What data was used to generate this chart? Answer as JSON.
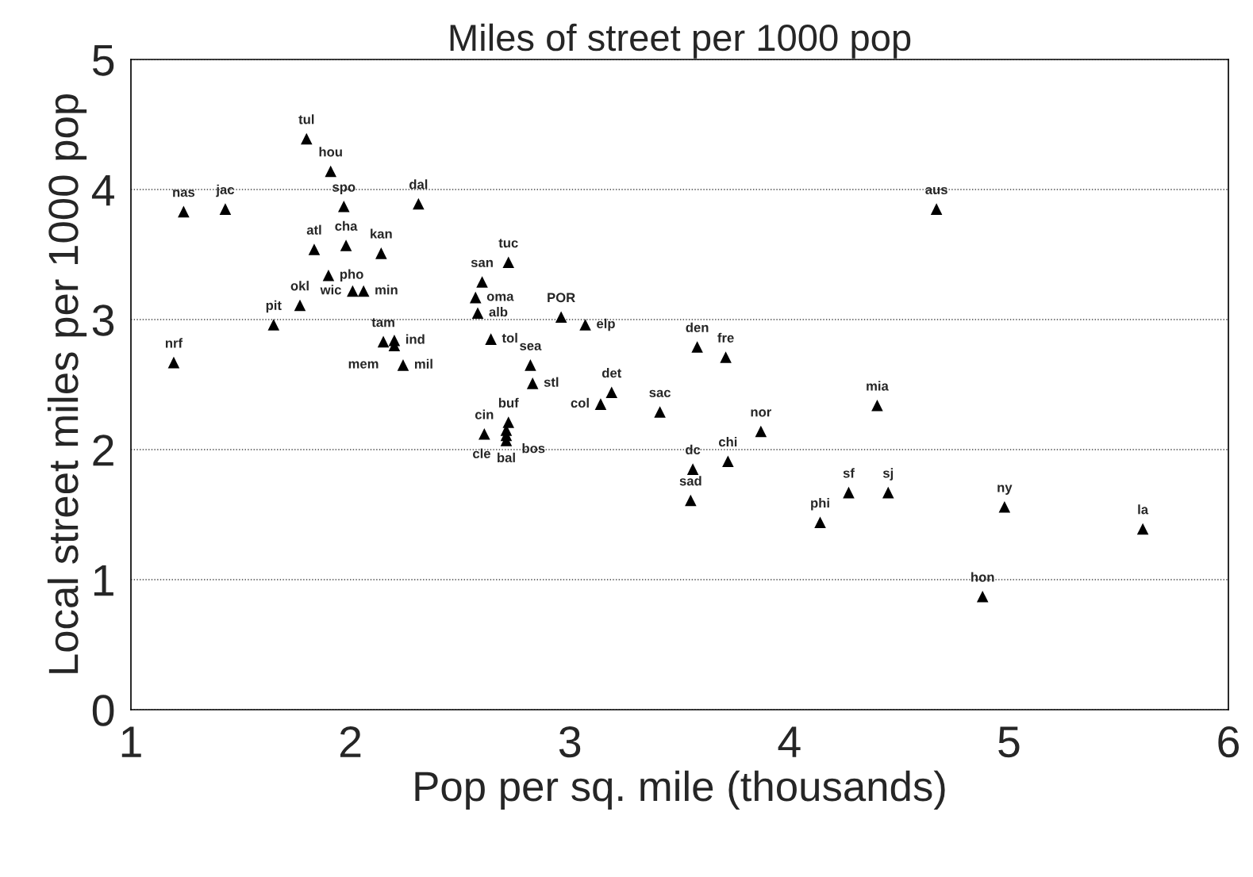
{
  "chart_data": {
    "type": "scatter",
    "title": "Miles of street per 1000 pop",
    "xlabel": "Pop per sq. mile (thousands)",
    "ylabel": "Local street miles per 1000 pop",
    "xlim": [
      1,
      6
    ],
    "xticks": [
      1,
      2,
      3,
      4,
      5,
      6
    ],
    "ylim": [
      0,
      5
    ],
    "yticks": [
      0,
      1,
      2,
      3,
      4,
      5
    ],
    "grid": "y",
    "marker": "triangle",
    "series": [
      {
        "color": "#000000",
        "x": [
          1.195,
          1.24,
          1.43,
          1.65,
          1.77,
          1.8,
          1.835,
          1.9,
          1.91,
          1.98,
          1.97,
          2.01,
          2.06,
          2.14,
          2.15,
          2.2,
          2.2,
          2.24,
          2.31,
          2.6,
          2.57,
          2.58,
          2.72,
          2.64,
          2.96,
          3.07,
          2.82,
          2.83,
          2.61,
          2.72,
          2.71,
          2.71,
          2.71,
          3.14,
          3.19,
          3.41,
          3.58,
          3.71,
          3.56,
          3.55,
          3.72,
          3.87,
          4.14,
          4.27,
          4.45,
          4.4,
          4.67,
          4.88,
          4.98,
          5.61
        ],
        "values": [
          2.67,
          3.83,
          3.85,
          2.96,
          3.11,
          4.39,
          3.54,
          3.34,
          4.14,
          3.57,
          3.87,
          3.22,
          3.22,
          3.51,
          2.83,
          2.84,
          2.8,
          2.65,
          3.89,
          3.29,
          3.17,
          3.05,
          3.44,
          2.85,
          3.02,
          2.96,
          2.65,
          2.51,
          2.12,
          2.21,
          2.15,
          2.11,
          2.07,
          2.35,
          2.44,
          2.29,
          2.79,
          2.71,
          1.85,
          1.61,
          1.91,
          2.14,
          1.44,
          1.67,
          1.67,
          2.34,
          3.85,
          0.87,
          1.56,
          1.39
        ]
      }
    ],
    "annotations": [
      {
        "text": "nrf",
        "x": 1.195,
        "y": 2.67
      },
      {
        "text": "nas",
        "x": 1.24,
        "y": 3.83
      },
      {
        "text": "jac",
        "x": 1.43,
        "y": 3.85
      },
      {
        "text": "pit",
        "x": 1.65,
        "y": 2.96
      },
      {
        "text": "okl",
        "x": 1.77,
        "y": 3.11
      },
      {
        "text": "tul",
        "x": 1.8,
        "y": 4.39
      },
      {
        "text": "atl",
        "x": 1.835,
        "y": 3.54
      },
      {
        "text": "pho",
        "x": 1.9,
        "y": 3.34
      },
      {
        "text": "hou",
        "x": 1.91,
        "y": 4.14
      },
      {
        "text": "cha",
        "x": 1.98,
        "y": 3.57
      },
      {
        "text": "spo",
        "x": 1.97,
        "y": 3.87
      },
      {
        "text": "wic",
        "x": 2.01,
        "y": 3.22
      },
      {
        "text": "min",
        "x": 2.06,
        "y": 3.22
      },
      {
        "text": "kan",
        "x": 2.14,
        "y": 3.51
      },
      {
        "text": "tam",
        "x": 2.15,
        "y": 2.83
      },
      {
        "text": "ind",
        "x": 2.2,
        "y": 2.84
      },
      {
        "text": "mem",
        "x": 2.2,
        "y": 2.8
      },
      {
        "text": "mil",
        "x": 2.24,
        "y": 2.65
      },
      {
        "text": "dal",
        "x": 2.31,
        "y": 3.89
      },
      {
        "text": "san",
        "x": 2.6,
        "y": 3.29
      },
      {
        "text": "oma",
        "x": 2.57,
        "y": 3.17
      },
      {
        "text": "alb",
        "x": 2.58,
        "y": 3.05
      },
      {
        "text": "tuc",
        "x": 2.72,
        "y": 3.44
      },
      {
        "text": "tol",
        "x": 2.64,
        "y": 2.85
      },
      {
        "text": "POR",
        "x": 2.96,
        "y": 3.02
      },
      {
        "text": "elp",
        "x": 3.07,
        "y": 2.96
      },
      {
        "text": "sea",
        "x": 2.82,
        "y": 2.65
      },
      {
        "text": "stl",
        "x": 2.83,
        "y": 2.51
      },
      {
        "text": "cin",
        "x": 2.61,
        "y": 2.12
      },
      {
        "text": "buf",
        "x": 2.72,
        "y": 2.21
      },
      {
        "text": "bos",
        "x": 2.71,
        "y": 2.15
      },
      {
        "text": "cle",
        "x": 2.71,
        "y": 2.11
      },
      {
        "text": "bal",
        "x": 2.71,
        "y": 2.07
      },
      {
        "text": "col",
        "x": 3.14,
        "y": 2.35
      },
      {
        "text": "det",
        "x": 3.19,
        "y": 2.44
      },
      {
        "text": "sac",
        "x": 3.41,
        "y": 2.29
      },
      {
        "text": "den",
        "x": 3.58,
        "y": 2.79
      },
      {
        "text": "fre",
        "x": 3.71,
        "y": 2.71
      },
      {
        "text": "dc",
        "x": 3.56,
        "y": 1.85
      },
      {
        "text": "sad",
        "x": 3.55,
        "y": 1.61
      },
      {
        "text": "chi",
        "x": 3.72,
        "y": 1.91
      },
      {
        "text": "nor",
        "x": 3.87,
        "y": 2.14
      },
      {
        "text": "phi",
        "x": 4.14,
        "y": 1.44
      },
      {
        "text": "sf",
        "x": 4.27,
        "y": 1.67
      },
      {
        "text": "sj",
        "x": 4.45,
        "y": 1.67
      },
      {
        "text": "mia",
        "x": 4.4,
        "y": 2.34
      },
      {
        "text": "aus",
        "x": 4.67,
        "y": 3.85
      },
      {
        "text": "hon",
        "x": 4.88,
        "y": 0.87
      },
      {
        "text": "ny",
        "x": 4.98,
        "y": 1.56
      },
      {
        "text": "la",
        "x": 5.61,
        "y": 1.39
      }
    ]
  }
}
